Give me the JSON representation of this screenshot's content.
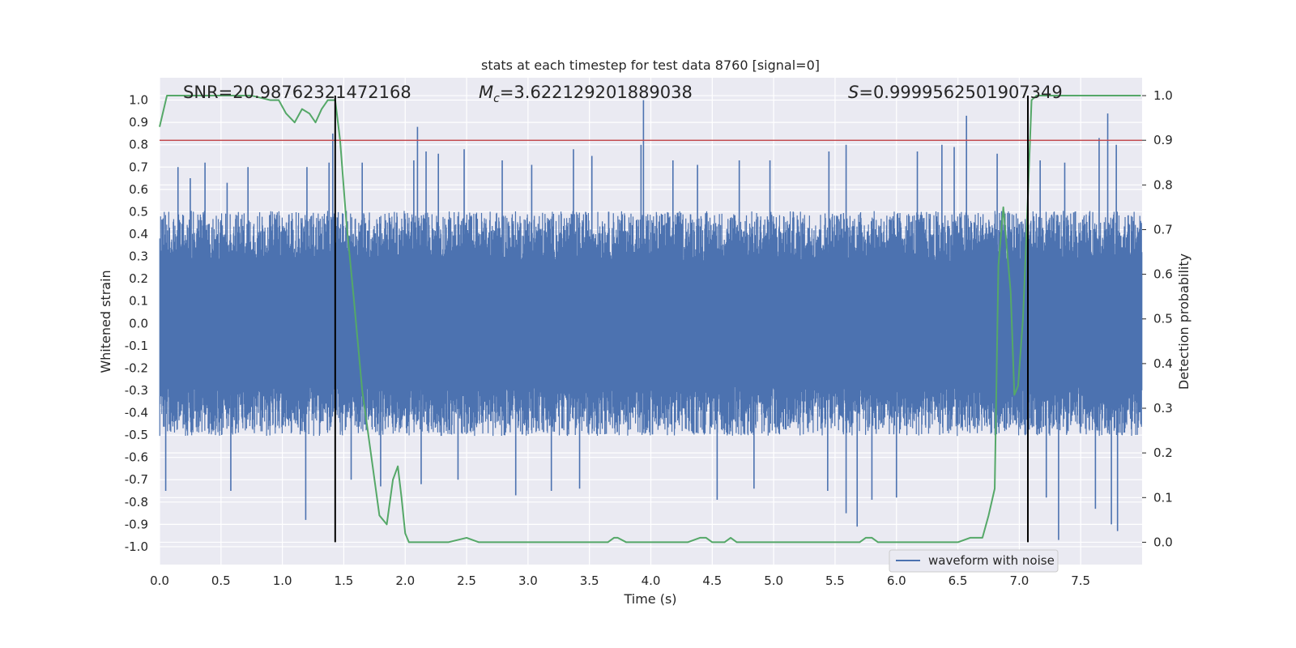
{
  "chart_data": {
    "type": "line",
    "title": "stats at each timestep for test data 8760 [signal=0]",
    "xlabel": "Time (s)",
    "ylabel": "Whitened strain",
    "ylabel_right": "Detection probability",
    "xlim": [
      0,
      8
    ],
    "ylim": [
      -1.08,
      1.1
    ],
    "ylim_right": [
      -0.05,
      1.04
    ],
    "xticks": [
      0.0,
      0.5,
      1.0,
      1.5,
      2.0,
      2.5,
      3.0,
      3.5,
      4.0,
      4.5,
      5.0,
      5.5,
      6.0,
      6.5,
      7.0,
      7.5
    ],
    "xtick_labels": [
      "0.0",
      "0.5",
      "1.0",
      "1.5",
      "2.0",
      "2.5",
      "3.0",
      "3.5",
      "4.0",
      "4.5",
      "5.0",
      "5.5",
      "6.0",
      "6.5",
      "7.0",
      "7.5"
    ],
    "yticks": [
      1.0,
      0.9,
      0.8,
      0.7,
      0.6,
      0.5,
      0.4,
      0.3,
      0.2,
      0.1,
      0.0,
      -0.1,
      -0.2,
      -0.3,
      -0.4,
      -0.5,
      -0.6,
      -0.7,
      -0.8,
      -0.9,
      -1.0
    ],
    "ytick_labels": [
      "1.0",
      "0.9",
      "0.8",
      "0.7",
      "0.6",
      "0.5",
      "0.4",
      "0.3",
      "0.2",
      "0.1",
      "0.0",
      "-0.1",
      "-0.2",
      "-0.3",
      "-0.4",
      "-0.5",
      "-0.6",
      "-0.7",
      "-0.8",
      "-0.9",
      "-1.0"
    ],
    "yticks_right": [
      1.0,
      0.9,
      0.8,
      0.7,
      0.6,
      0.5,
      0.4,
      0.3,
      0.2,
      0.1,
      0.0
    ],
    "ytick_labels_right": [
      "1.0",
      "0.9",
      "0.8",
      "0.7",
      "0.6",
      "0.5",
      "0.4",
      "0.3",
      "0.2",
      "0.1",
      "0.0"
    ],
    "annotations": {
      "snr": "SNR=20.98762321472168",
      "mc_symbol": "M",
      "mc_sub": "c",
      "mc_value": "=3.622129201889038",
      "s_symbol": "S",
      "s_value": "=0.9999562501907349"
    },
    "threshold": {
      "value": 0.9,
      "axis": "right",
      "color": "#c44e52"
    },
    "vlines": [
      1.43,
      7.07
    ],
    "vline_range_right": [
      0.0,
      1.0
    ],
    "legend": {
      "label": "waveform with noise",
      "location": "lower-right"
    },
    "series": [
      {
        "name": "waveform with noise",
        "axis": "left",
        "color": "#4c72b0",
        "typical_amplitude": 0.45,
        "spike_peaks": [
          {
            "x": 0.15,
            "y": 0.7
          },
          {
            "x": 0.25,
            "y": 0.65
          },
          {
            "x": 0.37,
            "y": 0.72
          },
          {
            "x": 0.55,
            "y": 0.63
          },
          {
            "x": 0.72,
            "y": 0.7
          },
          {
            "x": 1.2,
            "y": 0.7
          },
          {
            "x": 1.38,
            "y": 0.72
          },
          {
            "x": 1.41,
            "y": 0.85
          },
          {
            "x": 1.65,
            "y": 0.72
          },
          {
            "x": 2.07,
            "y": 0.73
          },
          {
            "x": 2.1,
            "y": 0.88
          },
          {
            "x": 2.17,
            "y": 0.77
          },
          {
            "x": 2.27,
            "y": 0.76
          },
          {
            "x": 2.48,
            "y": 0.78
          },
          {
            "x": 2.79,
            "y": 0.73
          },
          {
            "x": 3.03,
            "y": 0.71
          },
          {
            "x": 3.37,
            "y": 0.78
          },
          {
            "x": 3.52,
            "y": 0.75
          },
          {
            "x": 3.92,
            "y": 0.8
          },
          {
            "x": 3.94,
            "y": 1.0
          },
          {
            "x": 4.18,
            "y": 0.73
          },
          {
            "x": 4.38,
            "y": 0.71
          },
          {
            "x": 4.72,
            "y": 0.73
          },
          {
            "x": 4.97,
            "y": 0.73
          },
          {
            "x": 5.45,
            "y": 0.77
          },
          {
            "x": 5.59,
            "y": 0.8
          },
          {
            "x": 6.17,
            "y": 0.77
          },
          {
            "x": 6.37,
            "y": 0.8
          },
          {
            "x": 6.47,
            "y": 0.79
          },
          {
            "x": 6.57,
            "y": 0.93
          },
          {
            "x": 6.82,
            "y": 0.76
          },
          {
            "x": 7.17,
            "y": 0.73
          },
          {
            "x": 7.37,
            "y": 0.72
          },
          {
            "x": 7.65,
            "y": 0.83
          },
          {
            "x": 7.72,
            "y": 0.94
          },
          {
            "x": 7.79,
            "y": 0.8
          },
          {
            "x": 0.05,
            "y": -0.75
          },
          {
            "x": 0.58,
            "y": -0.75
          },
          {
            "x": 1.19,
            "y": -0.88
          },
          {
            "x": 1.56,
            "y": -0.7
          },
          {
            "x": 1.8,
            "y": -0.73
          },
          {
            "x": 2.13,
            "y": -0.72
          },
          {
            "x": 2.43,
            "y": -0.7
          },
          {
            "x": 2.9,
            "y": -0.77
          },
          {
            "x": 3.19,
            "y": -0.75
          },
          {
            "x": 3.42,
            "y": -0.74
          },
          {
            "x": 4.54,
            "y": -0.79
          },
          {
            "x": 4.84,
            "y": -0.74
          },
          {
            "x": 5.44,
            "y": -0.75
          },
          {
            "x": 5.59,
            "y": -0.85
          },
          {
            "x": 5.68,
            "y": -0.91
          },
          {
            "x": 5.8,
            "y": -0.79
          },
          {
            "x": 6.0,
            "y": -0.78
          },
          {
            "x": 7.22,
            "y": -0.78
          },
          {
            "x": 7.32,
            "y": -0.97
          },
          {
            "x": 7.62,
            "y": -0.83
          },
          {
            "x": 7.75,
            "y": -0.9
          },
          {
            "x": 7.8,
            "y": -0.93
          }
        ]
      },
      {
        "name": "detection probability",
        "axis": "right",
        "color": "#55a868",
        "x": [
          0.0,
          0.06,
          0.2,
          0.45,
          0.6,
          0.75,
          0.9,
          0.97,
          1.03,
          1.1,
          1.16,
          1.22,
          1.27,
          1.32,
          1.37,
          1.43,
          1.47,
          1.52,
          1.58,
          1.65,
          1.72,
          1.79,
          1.85,
          1.9,
          1.94,
          1.97,
          2.0,
          2.03,
          2.08,
          2.2,
          2.35,
          2.5,
          2.6,
          2.7,
          2.8,
          2.9,
          3.0,
          3.1,
          3.2,
          3.3,
          3.45,
          3.6,
          3.65,
          3.7,
          3.73,
          3.8,
          3.9,
          4.0,
          4.1,
          4.2,
          4.3,
          4.4,
          4.45,
          4.5,
          4.6,
          4.65,
          4.7,
          4.8,
          4.9,
          5.0,
          5.1,
          5.2,
          5.3,
          5.4,
          5.5,
          5.6,
          5.7,
          5.75,
          5.8,
          5.85,
          5.9,
          6.0,
          6.1,
          6.2,
          6.3,
          6.4,
          6.5,
          6.6,
          6.7,
          6.75,
          6.8,
          6.83,
          6.87,
          6.93,
          6.96,
          6.99,
          7.03,
          7.06,
          7.1,
          7.14,
          7.18,
          7.2,
          7.23,
          7.27,
          7.35,
          7.5,
          7.7,
          7.9,
          7.99
        ],
        "y": [
          0.93,
          1.0,
          1.0,
          1.0,
          1.0,
          1.0,
          0.99,
          0.99,
          0.96,
          0.94,
          0.97,
          0.96,
          0.94,
          0.97,
          0.99,
          0.99,
          0.9,
          0.72,
          0.55,
          0.34,
          0.2,
          0.06,
          0.04,
          0.14,
          0.17,
          0.1,
          0.02,
          0.0,
          0.0,
          0.0,
          0.0,
          0.01,
          0.0,
          0.0,
          0.0,
          0.0,
          0.0,
          0.0,
          0.0,
          0.0,
          0.0,
          0.0,
          0.0,
          0.01,
          0.01,
          0.0,
          0.0,
          0.0,
          0.0,
          0.0,
          0.0,
          0.01,
          0.01,
          0.0,
          0.0,
          0.01,
          0.0,
          0.0,
          0.0,
          0.0,
          0.0,
          0.0,
          0.0,
          0.0,
          0.0,
          0.0,
          0.0,
          0.01,
          0.01,
          0.0,
          0.0,
          0.0,
          0.0,
          0.0,
          0.0,
          0.0,
          0.0,
          0.01,
          0.01,
          0.06,
          0.12,
          0.62,
          0.75,
          0.56,
          0.33,
          0.35,
          0.5,
          0.7,
          0.99,
          1.0,
          1.0,
          1.0,
          1.0,
          1.0,
          1.0,
          1.0,
          1.0,
          1.0,
          1.0
        ]
      }
    ],
    "colors": {
      "background": "#eaeaf2",
      "grid": "#ffffff",
      "vline": "#000000",
      "text": "#262626"
    }
  }
}
